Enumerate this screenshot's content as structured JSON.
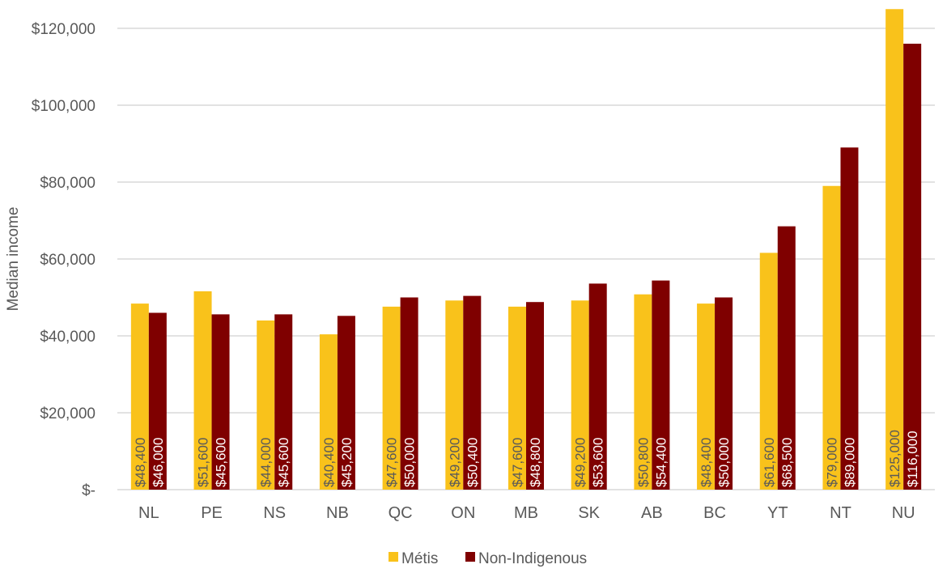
{
  "chart_data": {
    "type": "bar",
    "title": "",
    "xlabel": "",
    "ylabel": "Median income",
    "ylim": [
      0,
      120000
    ],
    "yticks": [
      0,
      20000,
      40000,
      60000,
      80000,
      100000,
      120000
    ],
    "ytick_labels": [
      "$-",
      "$20,000",
      "$40,000",
      "$60,000",
      "$80,000",
      "$100,000",
      "$120,000"
    ],
    "grid": true,
    "legend_position": "bottom",
    "categories": [
      "NL",
      "PE",
      "NS",
      "NB",
      "QC",
      "ON",
      "MB",
      "SK",
      "AB",
      "BC",
      "YT",
      "NT",
      "NU"
    ],
    "series": [
      {
        "name": "Métis",
        "color": "#F9C21B",
        "label_color": "#595959",
        "values": [
          48400,
          51600,
          44000,
          40400,
          47600,
          49200,
          47600,
          49200,
          50800,
          48400,
          61600,
          79000,
          125000
        ],
        "labels": [
          "$48,400",
          "$51,600",
          "$44,000",
          "$40,400",
          "$47,600",
          "$49,200",
          "$47,600",
          "$49,200",
          "$50,800",
          "$48,400",
          "$61,600",
          "$79,000",
          "$125,000"
        ]
      },
      {
        "name": "Non-Indigenous",
        "color": "#7F0000",
        "label_color": "#FFFFFF",
        "values": [
          46000,
          45600,
          45600,
          45200,
          50000,
          50400,
          48800,
          53600,
          54400,
          50000,
          68500,
          89000,
          116000
        ],
        "labels": [
          "$46,000",
          "$45,600",
          "$45,600",
          "$45,200",
          "$50,000",
          "$50,400",
          "$48,800",
          "$53,600",
          "$54,400",
          "$50,000",
          "$68,500",
          "$89,000",
          "$116,000"
        ]
      }
    ]
  }
}
